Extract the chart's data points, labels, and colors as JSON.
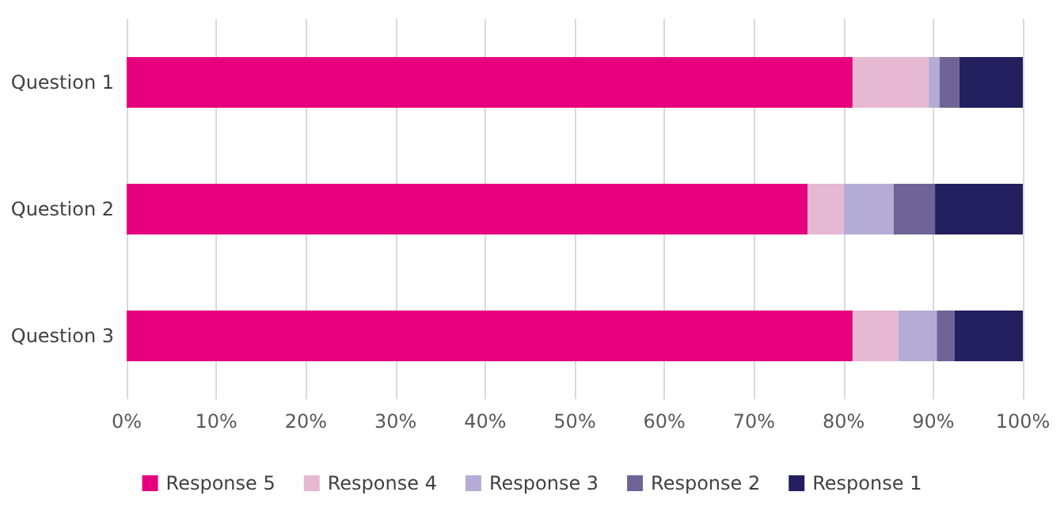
{
  "chart_data": {
    "type": "bar",
    "orientation": "horizontal",
    "stacked": true,
    "categories": [
      "Question 1",
      "Question 2",
      "Question 3"
    ],
    "series": [
      {
        "name": "Response 5",
        "color": "#e6007e",
        "values": [
          81,
          76,
          81
        ]
      },
      {
        "name": "Response 4",
        "color": "#e6b8d2",
        "values": [
          8.5,
          4,
          5.1
        ]
      },
      {
        "name": "Response 3",
        "color": "#b4acd4",
        "values": [
          1.2,
          5.6,
          4.3
        ]
      },
      {
        "name": "Response 2",
        "color": "#6e6496",
        "values": [
          2.2,
          4.6,
          2
        ]
      },
      {
        "name": "Response 1",
        "color": "#241f5e",
        "values": [
          7.1,
          9.8,
          7.6
        ]
      }
    ],
    "xlim": [
      0,
      100
    ],
    "xticks": [
      {
        "value": 0,
        "label": "0%"
      },
      {
        "value": 10,
        "label": "10%"
      },
      {
        "value": 20,
        "label": "20%"
      },
      {
        "value": 30,
        "label": "30%"
      },
      {
        "value": 40,
        "label": "40%"
      },
      {
        "value": 50,
        "label": "50%"
      },
      {
        "value": 60,
        "label": "60%"
      },
      {
        "value": 70,
        "label": "70%"
      },
      {
        "value": 80,
        "label": "80%"
      },
      {
        "value": 90,
        "label": "90%"
      },
      {
        "value": 100,
        "label": "100%"
      }
    ],
    "grid": "x",
    "legend": "bottom"
  }
}
